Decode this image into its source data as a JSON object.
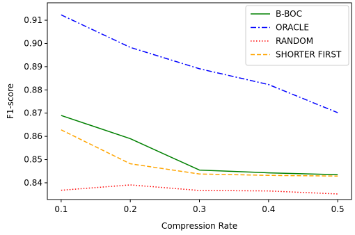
{
  "chart_data": {
    "type": "line",
    "x": [
      0.1,
      0.2,
      0.3,
      0.4,
      0.5
    ],
    "xlabel": "Compression Rate",
    "ylabel": "F1-score",
    "xlim": [
      0.08,
      0.52
    ],
    "ylim": [
      0.8328,
      0.9175
    ],
    "xticks": [
      "0.1",
      "0.2",
      "0.3",
      "0.4",
      "0.5"
    ],
    "yticks": [
      "0.84",
      "0.85",
      "0.86",
      "0.87",
      "0.88",
      "0.89",
      "0.90",
      "0.91"
    ],
    "ytick_values": [
      0.84,
      0.85,
      0.86,
      0.87,
      0.88,
      0.89,
      0.9,
      0.91
    ],
    "grid": false,
    "legend_position": "top-right",
    "series": [
      {
        "name": "B-BOC",
        "values": [
          0.869,
          0.859,
          0.8455,
          0.8443,
          0.8435
        ],
        "color": "#008000",
        "style": "solid"
      },
      {
        "name": "ORACLE",
        "values": [
          0.9123,
          0.8983,
          0.8891,
          0.8823,
          0.8702
        ],
        "color": "#0000ff",
        "style": "dashdot"
      },
      {
        "name": "RANDOM",
        "values": [
          0.8368,
          0.8391,
          0.8367,
          0.8365,
          0.8352
        ],
        "color": "#ff0000",
        "style": "dotted"
      },
      {
        "name": "SHORTER FIRST",
        "values": [
          0.8628,
          0.8482,
          0.8438,
          0.8432,
          0.8429
        ],
        "color": "#ffa500",
        "style": "dashed"
      }
    ]
  }
}
